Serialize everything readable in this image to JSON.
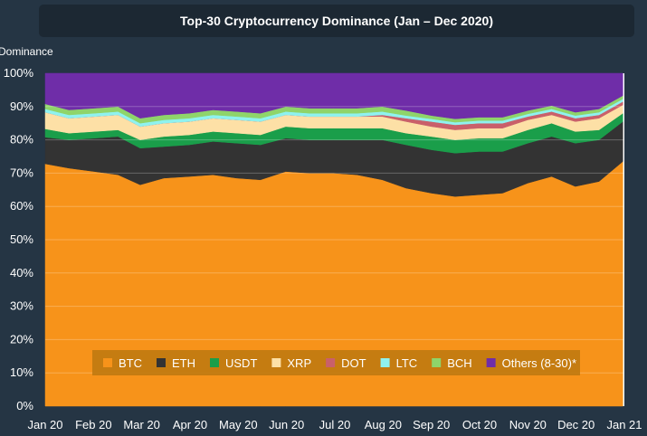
{
  "chart_data": {
    "type": "area",
    "stacked": true,
    "title": "Top-30 Cryptocurrency Dominance (Jan – Dec 2020)",
    "ylabel": "Dominance",
    "xlabel": "",
    "ylim": [
      0,
      100
    ],
    "yticks": [
      "0%",
      "10%",
      "20%",
      "30%",
      "40%",
      "50%",
      "60%",
      "70%",
      "80%",
      "90%",
      "100%"
    ],
    "xticks": [
      "Jan 20",
      "Feb 20",
      "Mar 20",
      "Apr 20",
      "May 20",
      "Jun 20",
      "Jul 20",
      "Aug 20",
      "Sep 20",
      "Oct 20",
      "Nov 20",
      "Dec 20",
      "Jan 21"
    ],
    "grid": true,
    "legend_position": "bottom-center",
    "x": [
      "2020-01-01",
      "2020-01-16",
      "2020-02-01",
      "2020-02-16",
      "2020-03-01",
      "2020-03-16",
      "2020-04-01",
      "2020-04-16",
      "2020-05-01",
      "2020-05-16",
      "2020-06-01",
      "2020-06-16",
      "2020-07-01",
      "2020-07-16",
      "2020-08-01",
      "2020-08-16",
      "2020-09-01",
      "2020-09-16",
      "2020-10-01",
      "2020-10-16",
      "2020-11-01",
      "2020-11-16",
      "2020-12-01",
      "2020-12-16",
      "2020-12-31"
    ],
    "series": [
      {
        "name": "BTC",
        "color": "#f7931a",
        "values": [
          72.8,
          71.5,
          70.5,
          69.5,
          66.5,
          68.5,
          69.0,
          69.5,
          68.5,
          68.0,
          70.5,
          70.0,
          70.0,
          69.5,
          68.0,
          65.5,
          64.0,
          63.0,
          63.5,
          64.0,
          67.0,
          69.0,
          66.0,
          67.5,
          73.5
        ]
      },
      {
        "name": "ETH",
        "color": "#333333",
        "values": [
          8.0,
          8.5,
          10.0,
          11.5,
          11.0,
          9.5,
          9.5,
          10.0,
          10.5,
          10.5,
          10.0,
          10.0,
          10.0,
          10.5,
          12.0,
          13.0,
          13.0,
          13.0,
          13.0,
          12.5,
          12.0,
          12.0,
          13.0,
          12.5,
          12.0
        ]
      },
      {
        "name": "USDT",
        "color": "#1a9e4a",
        "values": [
          2.5,
          2.0,
          2.0,
          2.0,
          2.5,
          3.0,
          3.0,
          3.0,
          3.0,
          3.0,
          3.5,
          3.5,
          3.5,
          3.5,
          3.5,
          3.5,
          4.0,
          4.0,
          4.0,
          4.0,
          4.0,
          4.0,
          3.5,
          3.0,
          2.5
        ]
      },
      {
        "name": "XRP",
        "color": "#fde0a6",
        "values": [
          5.0,
          4.5,
          4.5,
          4.5,
          4.0,
          4.0,
          4.0,
          4.0,
          4.0,
          4.0,
          3.5,
          3.5,
          3.5,
          3.5,
          3.5,
          3.5,
          3.0,
          3.0,
          3.0,
          3.0,
          3.0,
          2.5,
          3.0,
          3.5,
          2.5
        ]
      },
      {
        "name": "DOT",
        "color": "#c9606a",
        "values": [
          0.0,
          0.0,
          0.0,
          0.0,
          0.0,
          0.0,
          0.0,
          0.0,
          0.0,
          0.0,
          0.0,
          0.0,
          0.0,
          0.0,
          0.5,
          1.0,
          1.5,
          1.5,
          1.5,
          1.5,
          1.0,
          1.0,
          1.0,
          1.0,
          1.0
        ]
      },
      {
        "name": "LTC",
        "color": "#8ff2ef",
        "values": [
          1.0,
          1.0,
          1.0,
          1.0,
          1.0,
          1.0,
          1.0,
          1.0,
          1.0,
          1.0,
          1.0,
          1.0,
          1.0,
          1.0,
          1.0,
          0.8,
          0.8,
          0.8,
          0.8,
          0.8,
          0.8,
          0.8,
          0.8,
          0.8,
          0.8
        ]
      },
      {
        "name": "BCH",
        "color": "#8fd46a",
        "values": [
          1.5,
          1.5,
          1.5,
          1.5,
          1.5,
          1.5,
          1.5,
          1.5,
          1.5,
          1.5,
          1.5,
          1.5,
          1.5,
          1.5,
          1.5,
          1.5,
          1.0,
          1.0,
          1.0,
          1.0,
          1.0,
          1.0,
          1.0,
          1.0,
          1.0
        ]
      },
      {
        "name": "Others (8-30)*",
        "color": "#6f2da8",
        "values": [
          9.2,
          11.0,
          10.5,
          10.0,
          13.5,
          12.5,
          12.0,
          11.0,
          11.5,
          12.0,
          10.0,
          10.5,
          10.5,
          10.5,
          10.0,
          11.2,
          12.7,
          13.7,
          13.2,
          13.2,
          11.2,
          9.7,
          11.7,
          10.7,
          6.7
        ]
      }
    ]
  },
  "colors": {
    "background": "#253544",
    "plot_background": "#ffffff",
    "title_background": "#1c2833",
    "legend_background": "#c07a10",
    "text": "#ffffff"
  }
}
